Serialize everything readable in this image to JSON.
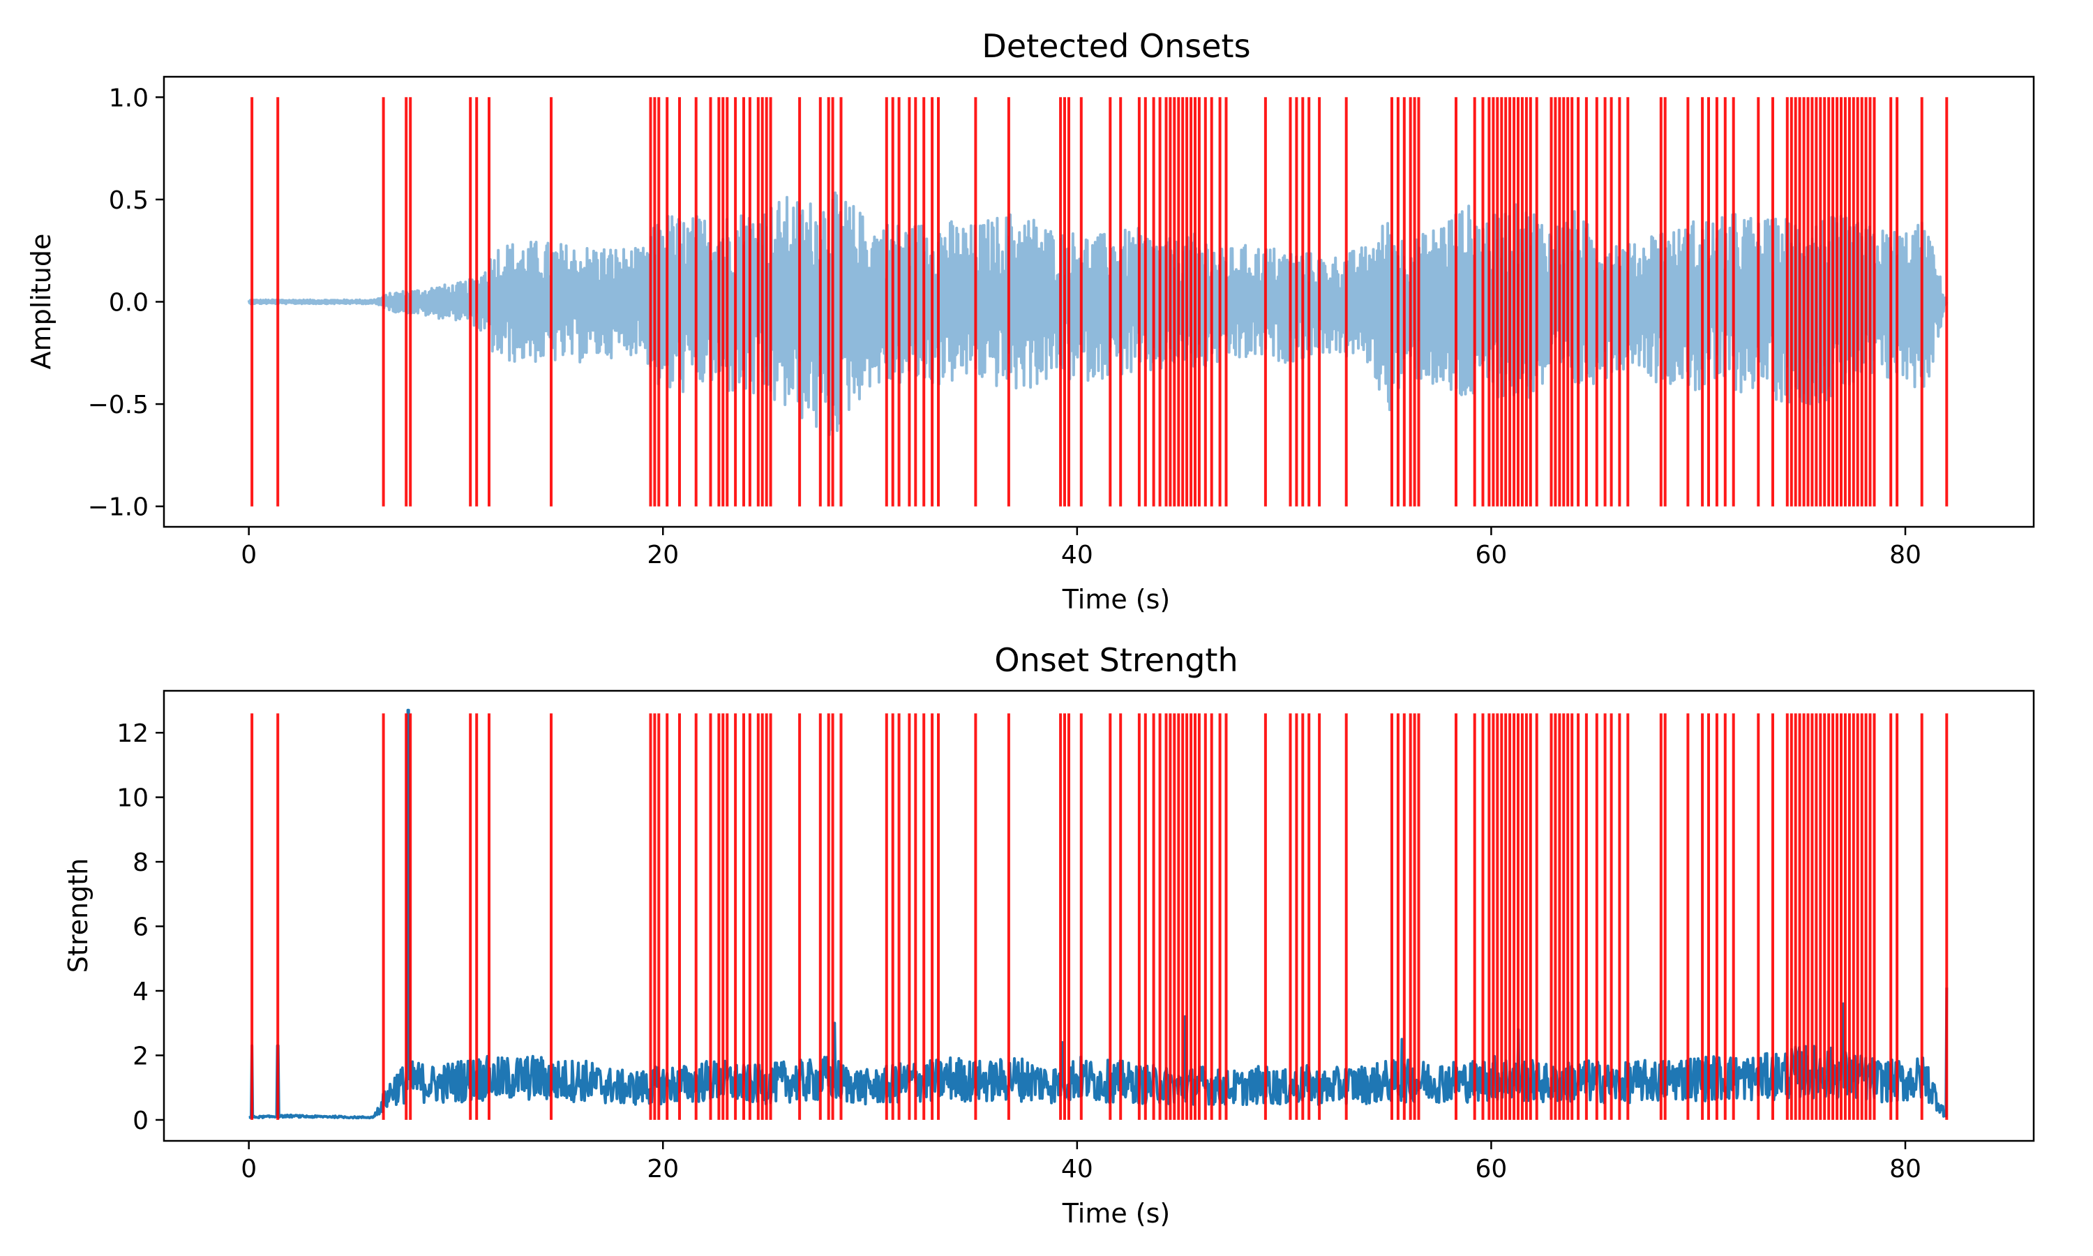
{
  "chart_data": [
    {
      "type": "line",
      "title": "Detected Onsets",
      "xlabel": "Time (s)",
      "ylabel": "Amplitude",
      "xlim": [
        -4.1,
        86.2
      ],
      "ylim": [
        -1.1,
        1.1
      ],
      "xticks": [
        0,
        20,
        40,
        60,
        80
      ],
      "xtick_labels": [
        "0",
        "20",
        "40",
        "60",
        "80"
      ],
      "yticks": [
        1.0,
        0.5,
        0.0,
        -0.5,
        -1.0
      ],
      "ytick_labels": [
        "1.0",
        "0.5",
        "0.0",
        "−0.5",
        "−1.0"
      ],
      "grid": false,
      "series": [
        {
          "color": "#8fbadb",
          "x": [
            0,
            1,
            2,
            3,
            4,
            5,
            6,
            7,
            8,
            9,
            10,
            11,
            12,
            13,
            14,
            15,
            16,
            17,
            18,
            19,
            20,
            21,
            22,
            23,
            24,
            25,
            26,
            27,
            28,
            29,
            30,
            31,
            32,
            33,
            34,
            35,
            36,
            37,
            38,
            39,
            40,
            41,
            42,
            43,
            44,
            45,
            46,
            47,
            48,
            49,
            50,
            51,
            52,
            53,
            54,
            55,
            56,
            57,
            58,
            59,
            60,
            61,
            62,
            63,
            64,
            65,
            66,
            67,
            68,
            69,
            70,
            71,
            72,
            73,
            74,
            75,
            76,
            77,
            78,
            79,
            80,
            81,
            82
          ],
          "envelope_upper": [
            0.01,
            0.01,
            0.01,
            0.01,
            0.01,
            0.01,
            0.01,
            0.05,
            0.06,
            0.08,
            0.09,
            0.12,
            0.29,
            0.3,
            0.3,
            0.29,
            0.28,
            0.28,
            0.27,
            0.26,
            0.45,
            0.42,
            0.43,
            0.44,
            0.46,
            0.48,
            0.52,
            0.5,
            0.55,
            0.5,
            0.4,
            0.4,
            0.38,
            0.42,
            0.4,
            0.38,
            0.42,
            0.45,
            0.42,
            0.35,
            0.35,
            0.33,
            0.35,
            0.36,
            0.32,
            0.3,
            0.35,
            0.26,
            0.28,
            0.28,
            0.26,
            0.25,
            0.22,
            0.24,
            0.28,
            0.42,
            0.3,
            0.35,
            0.45,
            0.48,
            0.42,
            0.48,
            0.47,
            0.38,
            0.45,
            0.35,
            0.32,
            0.28,
            0.38,
            0.36,
            0.42,
            0.41,
            0.45,
            0.4,
            0.42,
            0.43,
            0.42,
            0.42,
            0.38,
            0.36,
            0.36,
            0.4,
            0.0
          ],
          "envelope_lower": [
            -0.01,
            -0.01,
            -0.01,
            -0.01,
            -0.01,
            -0.01,
            -0.01,
            -0.05,
            -0.06,
            -0.08,
            -0.09,
            -0.12,
            -0.3,
            -0.3,
            -0.3,
            -0.3,
            -0.3,
            -0.28,
            -0.27,
            -0.25,
            -0.48,
            -0.45,
            -0.42,
            -0.45,
            -0.48,
            -0.5,
            -0.55,
            -0.6,
            -0.72,
            -0.55,
            -0.42,
            -0.42,
            -0.4,
            -0.42,
            -0.4,
            -0.38,
            -0.42,
            -0.45,
            -0.42,
            -0.38,
            -0.4,
            -0.38,
            -0.36,
            -0.38,
            -0.35,
            -0.32,
            -0.35,
            -0.3,
            -0.3,
            -0.28,
            -0.3,
            -0.28,
            -0.25,
            -0.28,
            -0.3,
            -0.55,
            -0.38,
            -0.4,
            -0.5,
            -0.5,
            -0.45,
            -0.5,
            -0.48,
            -0.4,
            -0.45,
            -0.4,
            -0.35,
            -0.3,
            -0.4,
            -0.4,
            -0.45,
            -0.42,
            -0.45,
            -0.42,
            -0.5,
            -0.5,
            -0.5,
            -0.45,
            -0.42,
            -0.4,
            -0.4,
            -0.45,
            0.0
          ]
        }
      ],
      "onsets": {
        "color": "#ff0000",
        "y_range": [
          -1.0,
          1.0
        ],
        "times": [
          0.15,
          1.4,
          6.5,
          7.6,
          7.8,
          10.7,
          11.0,
          11.6,
          14.6,
          19.4,
          19.6,
          19.8,
          20.2,
          20.8,
          21.6,
          22.3,
          22.7,
          22.9,
          23.1,
          23.5,
          23.9,
          24.2,
          24.6,
          24.8,
          25.0,
          25.2,
          26.6,
          27.6,
          28.0,
          28.2,
          28.6,
          30.8,
          31.1,
          31.4,
          31.9,
          32.2,
          32.6,
          33.0,
          33.3,
          35.1,
          36.7,
          39.2,
          39.4,
          39.6,
          40.2,
          41.6,
          42.1,
          43.0,
          43.3,
          43.7,
          44.0,
          44.3,
          44.5,
          44.7,
          44.9,
          45.1,
          45.3,
          45.5,
          45.7,
          45.9,
          46.2,
          46.5,
          46.9,
          47.2,
          49.1,
          50.3,
          50.6,
          50.9,
          51.2,
          51.7,
          53.0,
          55.2,
          55.5,
          55.8,
          56.1,
          56.3,
          56.5,
          58.3,
          59.2,
          59.6,
          59.9,
          60.1,
          60.3,
          60.5,
          60.7,
          60.9,
          61.1,
          61.3,
          61.5,
          61.7,
          61.9,
          62.2,
          62.9,
          63.1,
          63.3,
          63.5,
          63.7,
          63.9,
          64.2,
          64.6,
          65.1,
          65.5,
          65.8,
          66.2,
          66.6,
          68.2,
          68.4,
          69.5,
          70.2,
          70.5,
          70.9,
          71.3,
          71.7,
          72.9,
          73.6,
          74.3,
          74.5,
          74.7,
          74.9,
          75.1,
          75.3,
          75.5,
          75.7,
          75.9,
          76.1,
          76.3,
          76.5,
          76.7,
          76.9,
          77.1,
          77.3,
          77.5,
          77.7,
          77.9,
          78.1,
          78.3,
          78.5,
          79.3,
          79.6,
          80.8,
          82.0
        ]
      }
    },
    {
      "type": "line",
      "title": "Onset Strength",
      "xlabel": "Time (s)",
      "ylabel": "Strength",
      "xlim": [
        -4.1,
        86.2
      ],
      "ylim": [
        -0.65,
        13.3
      ],
      "xticks": [
        0,
        20,
        40,
        60,
        80
      ],
      "xtick_labels": [
        "0",
        "20",
        "40",
        "60",
        "80"
      ],
      "yticks": [
        0,
        2,
        4,
        6,
        8,
        10,
        12
      ],
      "ytick_labels": [
        "0",
        "2",
        "4",
        "6",
        "8",
        "10",
        "12"
      ],
      "grid": false,
      "series": [
        {
          "color": "#1f77b4",
          "x": [
            0,
            1,
            2,
            3,
            4,
            5,
            6,
            7,
            8,
            9,
            10,
            11,
            12,
            13,
            14,
            15,
            16,
            17,
            18,
            19,
            20,
            21,
            22,
            23,
            24,
            25,
            26,
            27,
            28,
            29,
            30,
            31,
            32,
            33,
            34,
            35,
            36,
            37,
            38,
            39,
            40,
            41,
            42,
            43,
            44,
            45,
            46,
            47,
            48,
            49,
            50,
            51,
            52,
            53,
            54,
            55,
            56,
            57,
            58,
            59,
            60,
            61,
            62,
            63,
            64,
            65,
            66,
            67,
            68,
            69,
            70,
            71,
            72,
            73,
            74,
            75,
            76,
            77,
            78,
            79,
            80,
            81,
            82
          ],
          "baseline": [
            0.08,
            0.1,
            0.12,
            0.1,
            0.1,
            0.08,
            0.08,
            1.0,
            1.2,
            1.1,
            1.2,
            1.3,
            1.25,
            1.3,
            1.3,
            1.2,
            1.25,
            1.1,
            1.0,
            1.0,
            1.1,
            1.1,
            1.2,
            1.2,
            1.1,
            1.1,
            1.2,
            1.2,
            1.3,
            1.1,
            1.0,
            1.1,
            1.2,
            1.2,
            1.3,
            1.2,
            1.2,
            1.3,
            1.2,
            1.1,
            1.3,
            1.2,
            1.2,
            1.1,
            1.1,
            1.0,
            1.1,
            1.0,
            1.0,
            1.1,
            1.0,
            1.1,
            1.0,
            1.1,
            1.1,
            1.2,
            1.2,
            1.2,
            1.2,
            1.2,
            1.3,
            1.3,
            1.2,
            1.1,
            1.2,
            1.2,
            1.1,
            1.2,
            1.2,
            1.3,
            1.3,
            1.3,
            1.3,
            1.3,
            1.4,
            1.5,
            1.5,
            1.4,
            1.3,
            1.2,
            1.2,
            1.3,
            0.05
          ],
          "peaks": [
            [
              0.15,
              2.3
            ],
            [
              1.4,
              2.3
            ],
            [
              7.7,
              12.7
            ],
            [
              28.3,
              3.0
            ],
            [
              39.3,
              2.4
            ],
            [
              45.2,
              3.2
            ],
            [
              55.7,
              2.5
            ],
            [
              61.3,
              2.8
            ],
            [
              77.0,
              3.6
            ],
            [
              82.0,
              4.1
            ]
          ]
        }
      ],
      "onsets": {
        "color": "#ff0000",
        "y_range": [
          0,
          12.6
        ],
        "times": [
          0.15,
          1.4,
          6.5,
          7.6,
          7.8,
          10.7,
          11.0,
          11.6,
          14.6,
          19.4,
          19.6,
          19.8,
          20.2,
          20.8,
          21.6,
          22.3,
          22.7,
          22.9,
          23.1,
          23.5,
          23.9,
          24.2,
          24.6,
          24.8,
          25.0,
          25.2,
          26.6,
          27.6,
          28.0,
          28.2,
          28.6,
          30.8,
          31.1,
          31.4,
          31.9,
          32.2,
          32.6,
          33.0,
          33.3,
          35.1,
          36.7,
          39.2,
          39.4,
          39.6,
          40.2,
          41.6,
          42.1,
          43.0,
          43.3,
          43.7,
          44.0,
          44.3,
          44.5,
          44.7,
          44.9,
          45.1,
          45.3,
          45.5,
          45.7,
          45.9,
          46.2,
          46.5,
          46.9,
          47.2,
          49.1,
          50.3,
          50.6,
          50.9,
          51.2,
          51.7,
          53.0,
          55.2,
          55.5,
          55.8,
          56.1,
          56.3,
          56.5,
          58.3,
          59.2,
          59.6,
          59.9,
          60.1,
          60.3,
          60.5,
          60.7,
          60.9,
          61.1,
          61.3,
          61.5,
          61.7,
          61.9,
          62.2,
          62.9,
          63.1,
          63.3,
          63.5,
          63.7,
          63.9,
          64.2,
          64.6,
          65.1,
          65.5,
          65.8,
          66.2,
          66.6,
          68.2,
          68.4,
          69.5,
          70.2,
          70.5,
          70.9,
          71.3,
          71.7,
          72.9,
          73.6,
          74.3,
          74.5,
          74.7,
          74.9,
          75.1,
          75.3,
          75.5,
          75.7,
          75.9,
          76.1,
          76.3,
          76.5,
          76.7,
          76.9,
          77.1,
          77.3,
          77.5,
          77.7,
          77.9,
          78.1,
          78.3,
          78.5,
          79.3,
          79.6,
          80.8,
          82.0
        ]
      }
    }
  ]
}
